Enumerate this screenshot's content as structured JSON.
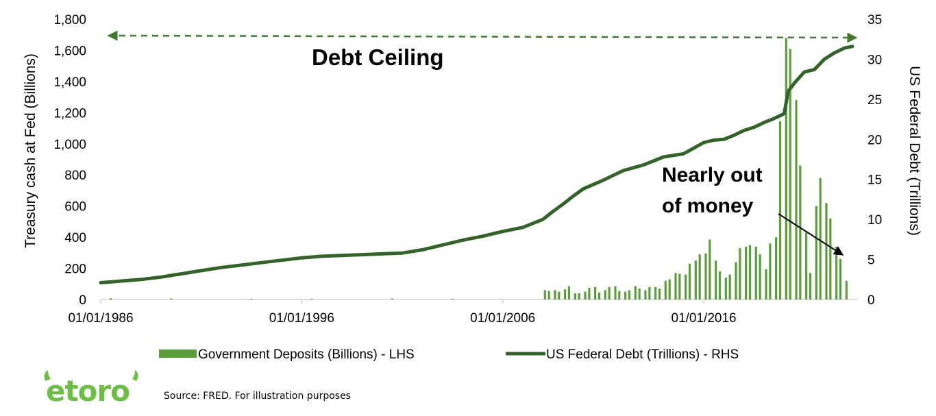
{
  "chart_data": {
    "type": "bar+line",
    "x_tick_labels": [
      "01/01/1986",
      "01/01/1996",
      "01/01/2006",
      "01/01/2016"
    ],
    "x_range": [
      1986.0,
      2023.6
    ],
    "left_axis": {
      "label": "Treasury cash at Fed (Billions)",
      "range": [
        0,
        1800
      ],
      "ticks": [
        "0",
        "200",
        "400",
        "600",
        "800",
        "1,000",
        "1,200",
        "1,400",
        "1,600",
        "1,800"
      ]
    },
    "right_axis": {
      "label": "US Federal Debt (Trillions)",
      "range": [
        0,
        35
      ],
      "ticks": [
        "0",
        "5",
        "10",
        "15",
        "20",
        "25",
        "30",
        "35"
      ]
    },
    "series": [
      {
        "name": "Government Deposits (Billions) - LHS",
        "kind": "bar",
        "axis": "left",
        "color": "#5a9e3c",
        "x": [
          1986.5,
          1989.5,
          1993.5,
          1996.5,
          2000.5,
          2003.5,
          2008.1,
          2008.3,
          2008.6,
          2008.8,
          2009.1,
          2009.3,
          2009.6,
          2009.8,
          2010.1,
          2010.3,
          2010.6,
          2010.8,
          2011.1,
          2011.3,
          2011.6,
          2011.8,
          2012.1,
          2012.3,
          2012.6,
          2012.8,
          2013.1,
          2013.3,
          2013.6,
          2013.8,
          2014.1,
          2014.3,
          2014.6,
          2014.8,
          2015.1,
          2015.3,
          2015.6,
          2015.8,
          2016.1,
          2016.3,
          2016.6,
          2016.8,
          2017.1,
          2017.3,
          2017.6,
          2017.8,
          2018.1,
          2018.3,
          2018.6,
          2018.8,
          2019.1,
          2019.3,
          2019.6,
          2019.8,
          2020.1,
          2020.3,
          2020.6,
          2020.8,
          2021.1,
          2021.3,
          2021.6,
          2021.8,
          2022.1,
          2022.3,
          2022.6,
          2022.8,
          2023.1,
          2023.3,
          2023.6
        ],
        "values": [
          8,
          6,
          5,
          5,
          6,
          5,
          60,
          55,
          60,
          50,
          65,
          85,
          40,
          40,
          50,
          75,
          80,
          45,
          60,
          80,
          85,
          55,
          50,
          60,
          85,
          70,
          60,
          80,
          80,
          70,
          120,
          130,
          170,
          165,
          160,
          230,
          250,
          290,
          295,
          385,
          250,
          180,
          140,
          160,
          240,
          330,
          340,
          350,
          340,
          290,
          195,
          360,
          400,
          1145,
          1680,
          1610,
          1280,
          860,
          430,
          170,
          600,
          780,
          620,
          520,
          340,
          260,
          120,
          0,
          0
        ]
      },
      {
        "name": "US Federal Debt (Trillions) - RHS",
        "kind": "line",
        "axis": "right",
        "color": "#33632a",
        "x": [
          1986,
          1987,
          1988,
          1989,
          1990,
          1991,
          1992,
          1993,
          1994,
          1995,
          1996,
          1997,
          1998,
          1999,
          2000,
          2001,
          2002,
          2003,
          2004,
          2005,
          2006,
          2007,
          2008,
          2008.5,
          2009,
          2009.5,
          2010,
          2011,
          2012,
          2013,
          2014,
          2015,
          2016,
          2016.5,
          2017,
          2017.5,
          2018,
          2018.5,
          2019,
          2019.5,
          2020,
          2020.2,
          2020.5,
          2021,
          2021.5,
          2022,
          2022.5,
          2023,
          2023.4
        ],
        "values": [
          2.1,
          2.3,
          2.5,
          2.8,
          3.2,
          3.6,
          4.0,
          4.3,
          4.6,
          4.9,
          5.2,
          5.4,
          5.5,
          5.6,
          5.7,
          5.8,
          6.2,
          6.8,
          7.4,
          7.9,
          8.5,
          9.0,
          10.0,
          11.0,
          11.9,
          12.9,
          13.8,
          14.9,
          16.1,
          16.8,
          17.8,
          18.2,
          19.6,
          19.9,
          20.0,
          20.5,
          21.1,
          21.5,
          22.1,
          22.6,
          23.2,
          26.0,
          27.0,
          28.4,
          28.7,
          30.0,
          30.8,
          31.4,
          31.6
        ]
      }
    ],
    "annotations": [
      "Debt Ceiling",
      "Nearly out of money"
    ],
    "legend_placement": "bottom-center",
    "grid": false
  },
  "annotation_text": {
    "debt_ceiling": "Debt Ceiling",
    "nearly_line1": "Nearly out",
    "nearly_line2": "of money"
  },
  "logo": {
    "text": "etoro",
    "color": "#6cbe45"
  },
  "footer": {
    "source": "Source: FRED. For illustration purposes"
  }
}
